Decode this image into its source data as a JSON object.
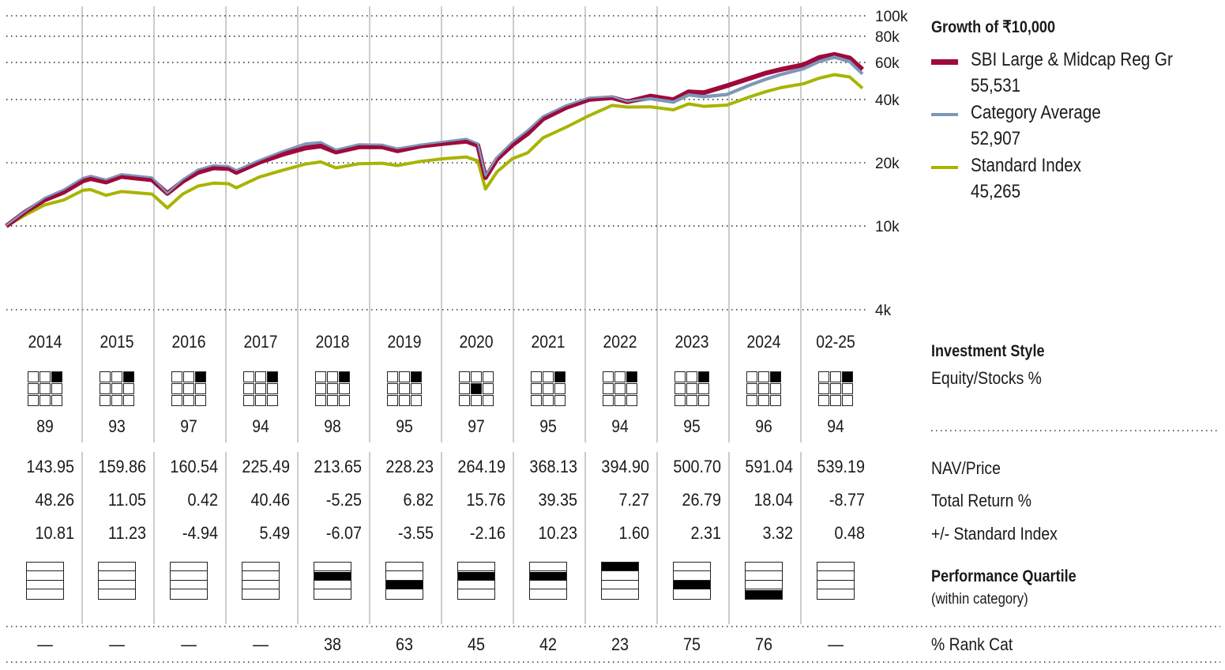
{
  "chart_data": {
    "type": "line",
    "title": "Growth of  ₹10,000",
    "yscale": "log",
    "ylim": [
      4000,
      100000
    ],
    "yticks": [
      "100k",
      "80k",
      "60k",
      "40k",
      "20k",
      "10k",
      "4k"
    ],
    "ytick_values": [
      100000,
      80000,
      60000,
      40000,
      20000,
      10000,
      4000
    ],
    "x_range": [
      2014.0,
      2025.167
    ],
    "grid": true,
    "legend_placement": "right",
    "series": [
      {
        "name": "Standard Index",
        "final": "45,265",
        "color": "#a8b400",
        "x": [
          2014.0,
          2014.25,
          2014.5,
          2014.75,
          2015.0,
          2015.1,
          2015.3,
          2015.5,
          2015.7,
          2015.9,
          2016.1,
          2016.3,
          2016.5,
          2016.7,
          2016.9,
          2017.0,
          2017.3,
          2017.6,
          2017.9,
          2018.1,
          2018.3,
          2018.6,
          2018.9,
          2019.1,
          2019.4,
          2019.7,
          2020.0,
          2020.15,
          2020.25,
          2020.4,
          2020.6,
          2020.8,
          2021.0,
          2021.3,
          2021.6,
          2021.9,
          2022.1,
          2022.4,
          2022.7,
          2022.9,
          2023.1,
          2023.4,
          2023.7,
          2023.9,
          2024.1,
          2024.4,
          2024.6,
          2024.8,
          2025.0,
          2025.167
        ],
        "y": [
          10000,
          11300,
          12600,
          13300,
          14800,
          14900,
          14000,
          14600,
          14400,
          14200,
          12200,
          14200,
          15500,
          16000,
          15900,
          15200,
          17100,
          18400,
          19700,
          20200,
          18900,
          19800,
          19900,
          19400,
          20300,
          20900,
          21300,
          20400,
          15000,
          18100,
          20900,
          22300,
          26300,
          29500,
          33500,
          37500,
          36800,
          36900,
          35700,
          38100,
          37100,
          37600,
          41200,
          43500,
          45500,
          47500,
          50500,
          52500,
          51200,
          45265
        ]
      },
      {
        "name": "Category Average",
        "final": "52,907",
        "color": "#7d97b9",
        "x": [
          2014.0,
          2014.25,
          2014.5,
          2014.75,
          2015.0,
          2015.1,
          2015.3,
          2015.5,
          2015.7,
          2015.9,
          2016.1,
          2016.3,
          2016.5,
          2016.7,
          2016.9,
          2017.0,
          2017.3,
          2017.6,
          2017.9,
          2018.1,
          2018.3,
          2018.6,
          2018.9,
          2019.1,
          2019.4,
          2019.7,
          2020.0,
          2020.15,
          2020.25,
          2020.4,
          2020.6,
          2020.8,
          2021.0,
          2021.3,
          2021.6,
          2021.9,
          2022.1,
          2022.4,
          2022.7,
          2022.9,
          2023.1,
          2023.4,
          2023.7,
          2023.9,
          2024.1,
          2024.4,
          2024.6,
          2024.8,
          2025.0,
          2025.167
        ],
        "y": [
          10000,
          11700,
          13500,
          14800,
          16800,
          17200,
          16500,
          17500,
          17200,
          16900,
          14200,
          16500,
          18400,
          19300,
          19100,
          18300,
          20400,
          22500,
          24500,
          24900,
          22900,
          24300,
          24200,
          23200,
          24200,
          25000,
          25800,
          24500,
          17200,
          21100,
          24900,
          28300,
          33000,
          37200,
          40500,
          41000,
          38800,
          40300,
          38800,
          42000,
          41200,
          42200,
          46800,
          49800,
          52500,
          56000,
          60500,
          63500,
          60500,
          52907
        ]
      },
      {
        "name": "SBI Large & Midcap Reg Gr",
        "final": "55,531",
        "color": "#9e0a3b",
        "x": [
          2014.0,
          2014.25,
          2014.5,
          2014.75,
          2015.0,
          2015.1,
          2015.3,
          2015.5,
          2015.7,
          2015.9,
          2016.1,
          2016.3,
          2016.5,
          2016.7,
          2016.9,
          2017.0,
          2017.3,
          2017.6,
          2017.9,
          2018.1,
          2018.3,
          2018.6,
          2018.9,
          2019.1,
          2019.4,
          2019.7,
          2020.0,
          2020.15,
          2020.25,
          2020.4,
          2020.6,
          2020.8,
          2021.0,
          2021.3,
          2021.6,
          2021.9,
          2022.1,
          2022.4,
          2022.7,
          2022.9,
          2023.1,
          2023.4,
          2023.7,
          2023.9,
          2024.1,
          2024.4,
          2024.6,
          2024.8,
          2025.0,
          2025.167
        ],
        "y": [
          10000,
          11700,
          13300,
          14500,
          16400,
          16800,
          16200,
          17200,
          16900,
          16600,
          14300,
          16300,
          18000,
          18900,
          18800,
          18000,
          20100,
          21900,
          23500,
          24000,
          22500,
          23800,
          23800,
          22800,
          24000,
          24700,
          25300,
          24200,
          17000,
          20800,
          24300,
          27500,
          32300,
          36600,
          40000,
          40800,
          39000,
          41500,
          39900,
          43500,
          43100,
          46500,
          50500,
          53300,
          55500,
          58500,
          63300,
          65500,
          63000,
          55531
        ]
      }
    ]
  },
  "legend_label": "Growth of  ₹10,000",
  "years": [
    "2014",
    "2015",
    "2016",
    "2017",
    "2018",
    "2019",
    "2020",
    "2021",
    "2022",
    "2023",
    "2024",
    "02-25"
  ],
  "style_cells": [
    2,
    2,
    2,
    2,
    2,
    2,
    4,
    2,
    2,
    2,
    2,
    2
  ],
  "equity_pct": [
    "89",
    "93",
    "97",
    "94",
    "98",
    "95",
    "97",
    "95",
    "94",
    "95",
    "96",
    "94"
  ],
  "nav_price": [
    "143.95",
    "159.86",
    "160.54",
    "225.49",
    "213.65",
    "228.23",
    "264.19",
    "368.13",
    "394.90",
    "500.70",
    "591.04",
    "539.19"
  ],
  "total_return": [
    "48.26",
    "11.05",
    "0.42",
    "40.46",
    "-5.25",
    "6.82",
    "15.76",
    "39.35",
    "7.27",
    "26.79",
    "18.04",
    "-8.77"
  ],
  "vs_index": [
    "10.81",
    "11.23",
    "-4.94",
    "5.49",
    "-6.07",
    "-3.55",
    "-2.16",
    "10.23",
    "1.60",
    "2.31",
    "3.32",
    "0.48"
  ],
  "quartile": [
    0,
    0,
    0,
    0,
    2,
    3,
    2,
    2,
    1,
    3,
    4,
    0
  ],
  "rank_cat": [
    "—",
    "—",
    "—",
    "—",
    "38",
    "63",
    "45",
    "42",
    "23",
    "75",
    "76",
    "—"
  ],
  "labels": {
    "investment_style": "Investment Style",
    "equity_stocks": "Equity/Stocks %",
    "nav_price": "NAV/Price",
    "total_return": "Total Return %",
    "vs_index": "+/- Standard Index",
    "perf_quartile": "Performance Quartile",
    "within_category": "(within category)",
    "rank_cat": "% Rank Cat"
  }
}
